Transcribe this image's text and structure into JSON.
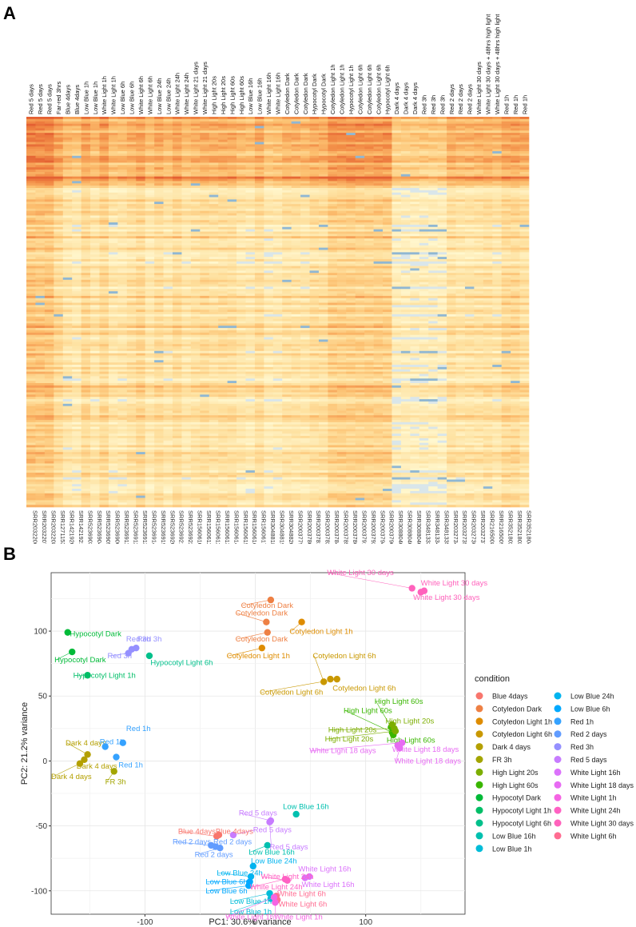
{
  "panels": {
    "a": "A",
    "b": "B"
  },
  "heatmap": {
    "columns": [
      {
        "condition": "Red 5 days",
        "sra": "SRR2032206"
      },
      {
        "condition": "Red 5 days",
        "sra": "SRR2032207"
      },
      {
        "condition": "Red 5 days",
        "sra": "SRR2032208"
      },
      {
        "condition": "Far-red 3hrs",
        "sra": "SRR1271153"
      },
      {
        "condition": "Blue 4days",
        "sra": "SRR1421920"
      },
      {
        "condition": "Blue 4days",
        "sra": "SRR1421921"
      },
      {
        "condition": "Low Blue 1h",
        "sra": "SRR5236903"
      },
      {
        "condition": "Low Blue 1h",
        "sra": "SRR5236904"
      },
      {
        "condition": "White Light 1h",
        "sra": "SRR5236905"
      },
      {
        "condition": "White Light 1h",
        "sra": "SRR5236906"
      },
      {
        "condition": "Low Blue 6h",
        "sra": "SRR5236911"
      },
      {
        "condition": "Low Blue 6h",
        "sra": "SRR5236912"
      },
      {
        "condition": "White Light 6h",
        "sra": "SRR5236913"
      },
      {
        "condition": "White Light 6h",
        "sra": "SRR5236914"
      },
      {
        "condition": "Low Blue 24h",
        "sra": "SRR5236919"
      },
      {
        "condition": "Low Blue 24h",
        "sra": "SRR5236920"
      },
      {
        "condition": "White Light 24h",
        "sra": "SRR5236921"
      },
      {
        "condition": "White Light 24h",
        "sra": "SRR5236922"
      },
      {
        "condition": "White Light 21 days",
        "sra": "SRR1560610"
      },
      {
        "condition": "White Light 21 days",
        "sra": "SRR1560611"
      },
      {
        "condition": "High Light 20s",
        "sra": "SRR1560612"
      },
      {
        "condition": "High Light 20s",
        "sra": "SRR1560613"
      },
      {
        "condition": "High Light 60s",
        "sra": "SRR1560614"
      },
      {
        "condition": "High Light 60s",
        "sra": "SRR1560615"
      },
      {
        "condition": "Low Blue 16h",
        "sra": "SRR1560616"
      },
      {
        "condition": "Low Blue 16h",
        "sra": "SRR1560617"
      },
      {
        "condition": "White Light 16h",
        "sra": "SRR3048818"
      },
      {
        "condition": "White Light 16h",
        "sra": "SRR3048819"
      },
      {
        "condition": "Cotyledon Dark",
        "sra": "SRR3048820"
      },
      {
        "condition": "Cotyledon Dark",
        "sra": "SRR2003779"
      },
      {
        "condition": "Cotyledon Dark",
        "sra": "SRR2003780"
      },
      {
        "condition": "Hypocotyl Dark",
        "sra": "SRR2003781"
      },
      {
        "condition": "Hypocotyl Dark",
        "sra": "SRR2003782"
      },
      {
        "condition": "Cotyledon Light 1h",
        "sra": "SRR2003784"
      },
      {
        "condition": "Cotyledon Light 1h",
        "sra": "SRR2003785"
      },
      {
        "condition": "Hypocotyl Light 1h",
        "sra": "SRR2003786"
      },
      {
        "condition": "Cotyledon Light 6h",
        "sra": "SRR2003791"
      },
      {
        "condition": "Cotyledon Light 6h",
        "sra": "SRR2003792"
      },
      {
        "condition": "Cotyledon Light 6h",
        "sra": "SRR2003794"
      },
      {
        "condition": "Hypocotyl Light 6h",
        "sra": "SRR2003796"
      },
      {
        "condition": "Dark 4 days",
        "sra": "SRR3088040_1"
      },
      {
        "condition": "Dark 4 days",
        "sra": "SRR3088040_2"
      },
      {
        "condition": "Dark 4 days",
        "sra": "SRR3088040_3"
      },
      {
        "condition": "Red 3h",
        "sra": "SRR3481333"
      },
      {
        "condition": "Red 3h",
        "sra": "SRR3481334"
      },
      {
        "condition": "Red 3h",
        "sra": "SRR3481335"
      },
      {
        "condition": "Red 2 days",
        "sra": "SRR2032734"
      },
      {
        "condition": "Red 2 days",
        "sra": "SRR2032735"
      },
      {
        "condition": "Red 2 days",
        "sra": "SRR2032736"
      },
      {
        "condition": "White Light 30 days",
        "sra": "SRR2032737"
      },
      {
        "condition": "White Light 30 days + 48hrs high light",
        "sra": "SRR2165008"
      },
      {
        "condition": "White Light 30 days + 48hrs high light",
        "sra": "SRR2165009"
      },
      {
        "condition": "Red 1h",
        "sra": "SRR3521802"
      },
      {
        "condition": "Red 1h",
        "sra": "SRR3521803"
      },
      {
        "condition": "Red 1h",
        "sra": "SRR3521804"
      }
    ]
  },
  "chart_data": {
    "type": "scatter",
    "xlabel": "PC1: 30.6% variance",
    "ylabel": "PC2: 21.2% variance",
    "xlim": [
      -185,
      190
    ],
    "ylim": [
      -118,
      145
    ],
    "xticks": [
      -100,
      0,
      100
    ],
    "yticks": [
      -100,
      -50,
      0,
      50,
      100
    ],
    "legend_title": "condition",
    "legend": [
      {
        "name": "Blue 4days",
        "color": "#F8766D"
      },
      {
        "name": "Cotyledon Dark",
        "color": "#EE8044"
      },
      {
        "name": "Cotyledon Light 1h",
        "color": "#DE8C00"
      },
      {
        "name": "Cotyledon Light 6h",
        "color": "#C99800"
      },
      {
        "name": "Dark 4 days",
        "color": "#B4A000"
      },
      {
        "name": "FR 3h",
        "color": "#A3A500"
      },
      {
        "name": "High Light 20s",
        "color": "#7CAE00"
      },
      {
        "name": "High Light 60s",
        "color": "#39B600"
      },
      {
        "name": "Hypocotyl Dark",
        "color": "#00BA38"
      },
      {
        "name": "Hypocotyl Light 1h",
        "color": "#00BE67"
      },
      {
        "name": "Hypocotyl Light 6h",
        "color": "#00C08B"
      },
      {
        "name": "Low Blue 16h",
        "color": "#00C0AF"
      },
      {
        "name": "Low Blue 1h",
        "color": "#00BCD8"
      },
      {
        "name": "Low Blue 24h",
        "color": "#00B4EF"
      },
      {
        "name": "Low Blue 6h",
        "color": "#00A9FF"
      },
      {
        "name": "Red 1h",
        "color": "#35A2FF"
      },
      {
        "name": "Red 2 days",
        "color": "#619CFF"
      },
      {
        "name": "Red 3h",
        "color": "#9590FF"
      },
      {
        "name": "Red 5 days",
        "color": "#C77CFF"
      },
      {
        "name": "White Light 16h",
        "color": "#DB72FB"
      },
      {
        "name": "White Light 18 days",
        "color": "#E76BF3"
      },
      {
        "name": "White Light 1h",
        "color": "#F564E3"
      },
      {
        "name": "White Light 24h",
        "color": "#FF61C3"
      },
      {
        "name": "White Light 30 days",
        "color": "#FF62BC"
      },
      {
        "name": "White Light 6h",
        "color": "#FF6C91"
      }
    ],
    "points": [
      {
        "x": -170,
        "y": 99,
        "label": "Hypocotyl Dark",
        "c": "Hypocotyl Dark",
        "lx": -168,
        "ly": 96,
        "anchor": "start"
      },
      {
        "x": -166,
        "y": 84,
        "label": "Hypocotyl Dark",
        "c": "Hypocotyl Dark",
        "lx": -182,
        "ly": 76,
        "anchor": "start"
      },
      {
        "x": -112,
        "y": 86,
        "label": "Red 3h",
        "c": "Red 3h",
        "lx": -117,
        "ly": 92,
        "anchor": "start"
      },
      {
        "x": -108,
        "y": 87,
        "label": "Red 3h",
        "c": "Red 3h",
        "lx": -107,
        "ly": 92,
        "anchor": "start"
      },
      {
        "x": -115,
        "y": 83,
        "label": "Red 3h",
        "c": "Red 3h",
        "lx": -134,
        "ly": 79,
        "anchor": "start"
      },
      {
        "x": -96,
        "y": 81,
        "label": "Hypocotyl Light 6h",
        "c": "Hypocotyl Light 6h",
        "lx": -95,
        "ly": 74,
        "anchor": "start"
      },
      {
        "x": -152,
        "y": 66,
        "label": "Hypocotyl Light 1h",
        "c": "Hypocotyl Light 1h",
        "lx": -165,
        "ly": 64,
        "anchor": "start"
      },
      {
        "x": 14,
        "y": 124,
        "label": "Cotyledon Dark",
        "c": "Cotyledon Dark",
        "lx": -13,
        "ly": 118,
        "anchor": "start"
      },
      {
        "x": 10,
        "y": 107,
        "label": "Cotyledon Dark",
        "c": "Cotyledon Dark",
        "lx": -18,
        "ly": 112,
        "anchor": "start"
      },
      {
        "x": 11,
        "y": 99,
        "label": "Cotyledon Dark",
        "c": "Cotyledon Dark",
        "lx": -18,
        "ly": 92,
        "anchor": "start"
      },
      {
        "x": 42,
        "y": 107,
        "label": "Cotyledon Light 1h",
        "c": "Cotyledon Light 1h",
        "lx": 31,
        "ly": 98,
        "anchor": "start"
      },
      {
        "x": 6,
        "y": 87,
        "label": "Cotyledon Light 1h",
        "c": "Cotyledon Light 1h",
        "lx": -26,
        "ly": 79,
        "anchor": "start"
      },
      {
        "x": 62,
        "y": 61,
        "label": "Cotyledon Light 6h",
        "c": "Cotyledon Light 6h",
        "lx": 52,
        "ly": 79,
        "anchor": "start"
      },
      {
        "x": 68,
        "y": 63,
        "label": "Cotyledon Light 6h",
        "c": "Cotyledon Light 6h",
        "lx": 70,
        "ly": 54,
        "anchor": "start"
      },
      {
        "x": 74,
        "y": 63,
        "label": "Cotyledon Light 6h",
        "c": "Cotyledon Light 6h",
        "lx": 4,
        "ly": 51,
        "anchor": "start"
      },
      {
        "x": 142,
        "y": 133,
        "label": "White Light 30 days",
        "c": "White Light 30 days",
        "lx": 65,
        "ly": 143,
        "anchor": "start"
      },
      {
        "x": 150,
        "y": 130,
        "label": "White Light 30 days",
        "c": "White Light 30 days",
        "lx": 150,
        "ly": 135,
        "anchor": "start"
      },
      {
        "x": 153,
        "y": 131,
        "label": "White Light 30 days",
        "c": "White Light 30 days",
        "lx": 143,
        "ly": 124,
        "anchor": "start"
      },
      {
        "x": 123,
        "y": 26,
        "label": "High Light 60s",
        "c": "High Light 60s",
        "lx": 108,
        "ly": 44,
        "anchor": "start"
      },
      {
        "x": 124,
        "y": 22,
        "label": "High Light 60s",
        "c": "High Light 60s",
        "lx": 80,
        "ly": 37,
        "anchor": "start"
      },
      {
        "x": 125,
        "y": 20,
        "label": "High Light 60s",
        "c": "High Light 60s",
        "lx": 119,
        "ly": 14,
        "anchor": "start"
      },
      {
        "x": 124,
        "y": 28,
        "label": "High Light 20s",
        "c": "High Light 20s",
        "lx": 118,
        "ly": 29,
        "anchor": "start"
      },
      {
        "x": 126,
        "y": 25,
        "label": "High Light 20s",
        "c": "High Light 20s",
        "lx": 66,
        "ly": 22,
        "anchor": "start"
      },
      {
        "x": 127,
        "y": 23,
        "label": "High Light 20s",
        "c": "High Light 20s",
        "lx": 63,
        "ly": 15,
        "anchor": "start"
      },
      {
        "x": 133,
        "y": 14,
        "label": "White Light 18 days",
        "c": "White Light 18 days",
        "lx": 49,
        "ly": 6,
        "anchor": "start"
      },
      {
        "x": 129,
        "y": 12,
        "label": "White Light 18 days",
        "c": "White Light 18 days",
        "lx": 124,
        "ly": 7,
        "anchor": "start"
      },
      {
        "x": 131,
        "y": 10,
        "label": "White Light 18 days",
        "c": "White Light 18 days",
        "lx": 126,
        "ly": -2,
        "anchor": "start"
      },
      {
        "x": -152,
        "y": 5,
        "label": "Dark 4 days",
        "c": "Dark 4 days",
        "lx": -172,
        "ly": 12,
        "anchor": "start"
      },
      {
        "x": -155,
        "y": 1,
        "label": "Dark 4 days",
        "c": "Dark 4 days",
        "lx": -162,
        "ly": -6,
        "anchor": "start"
      },
      {
        "x": -159,
        "y": -2,
        "label": "Dark 4 days",
        "c": "Dark 4 days",
        "lx": -185,
        "ly": -14,
        "anchor": "start"
      },
      {
        "x": -136,
        "y": 11,
        "label": "Red 1h",
        "c": "Red 1h",
        "lx": -141,
        "ly": 13,
        "anchor": "start"
      },
      {
        "x": -120,
        "y": 14,
        "label": "Red 1h",
        "c": "Red 1h",
        "lx": -117,
        "ly": 23,
        "anchor": "start"
      },
      {
        "x": -126,
        "y": 3,
        "label": "Red 1h",
        "c": "Red 1h",
        "lx": -124,
        "ly": -5,
        "anchor": "start"
      },
      {
        "x": -128,
        "y": -8,
        "label": "FR 3h",
        "c": "FR 3h",
        "lx": -136,
        "ly": -18,
        "anchor": "start"
      },
      {
        "x": 37,
        "y": -41,
        "label": "Low Blue 16h",
        "c": "Low Blue 16h",
        "lx": 25,
        "ly": -37,
        "anchor": "start"
      },
      {
        "x": 11,
        "y": -65,
        "label": "Low Blue 16h",
        "c": "Low Blue 16h",
        "lx": -6,
        "ly": -72,
        "anchor": "start"
      },
      {
        "x": -2,
        "y": -81,
        "label": "Low Blue 24h",
        "c": "Low Blue 24h",
        "lx": -4,
        "ly": -79,
        "anchor": "start"
      },
      {
        "x": -4,
        "y": -89,
        "label": "Low Blue 24h",
        "c": "Low Blue 24h",
        "lx": -35,
        "ly": -88,
        "anchor": "start"
      },
      {
        "x": -5,
        "y": -93,
        "label": "Low Blue 6h",
        "c": "Low Blue 6h",
        "lx": -45,
        "ly": -95,
        "anchor": "start"
      },
      {
        "x": -6,
        "y": -96,
        "label": "Low Blue 6h",
        "c": "Low Blue 6h",
        "lx": -45,
        "ly": -102,
        "anchor": "start"
      },
      {
        "x": 13,
        "y": -102,
        "label": "Low Blue 1h",
        "c": "Low Blue 1h",
        "lx": -23,
        "ly": -110,
        "anchor": "start"
      },
      {
        "x": 14,
        "y": -106,
        "label": "Low Blue 1h",
        "c": "Low Blue 1h",
        "lx": -23,
        "ly": -118,
        "anchor": "start"
      },
      {
        "x": 14,
        "y": -46,
        "label": "Red 5 days",
        "c": "Red 5 days",
        "lx": -15,
        "ly": -42,
        "anchor": "start"
      },
      {
        "x": -20,
        "y": -57,
        "label": "Red 5 days",
        "c": "Red 5 days",
        "lx": -2,
        "ly": -55,
        "anchor": "start"
      },
      {
        "x": 13,
        "y": -47,
        "label": "Red 5 days",
        "c": "Red 5 days",
        "lx": 13,
        "ly": -68,
        "anchor": "start"
      },
      {
        "x": -35,
        "y": -58,
        "label": "Blue 4days",
        "c": "Blue 4days",
        "lx": -70,
        "ly": -56,
        "anchor": "start"
      },
      {
        "x": -33,
        "y": -57,
        "label": "Blue 4days",
        "c": "Blue 4days",
        "lx": -36,
        "ly": -56,
        "anchor": "start"
      },
      {
        "x": -40,
        "y": -65,
        "label": "Red 2 days",
        "c": "Red 2 days",
        "lx": -75,
        "ly": -64,
        "anchor": "start"
      },
      {
        "x": -36,
        "y": -66,
        "label": "Red 2 days",
        "c": "Red 2 days",
        "lx": -38,
        "ly": -64,
        "anchor": "start"
      },
      {
        "x": -32,
        "y": -67,
        "label": "Red 2 days",
        "c": "Red 2 days",
        "lx": -55,
        "ly": -74,
        "anchor": "start"
      },
      {
        "x": 49,
        "y": -89,
        "label": "White Light 16h",
        "c": "White Light 16h",
        "lx": 39,
        "ly": -85,
        "anchor": "start"
      },
      {
        "x": 45,
        "y": -90,
        "label": "White Light 16h",
        "c": "White Light 16h",
        "lx": 42,
        "ly": -97,
        "anchor": "start"
      },
      {
        "x": 29,
        "y": -92,
        "label": "White Light 24h",
        "c": "White Light 24h",
        "lx": 5,
        "ly": -91,
        "anchor": "start"
      },
      {
        "x": 27,
        "y": -91,
        "label": "White Light 24h",
        "c": "White Light 24h",
        "lx": -5,
        "ly": -99,
        "anchor": "start"
      },
      {
        "x": 19,
        "y": -104,
        "label": "White Light 6h",
        "c": "White Light 6h",
        "lx": 20,
        "ly": -104,
        "anchor": "start"
      },
      {
        "x": 20,
        "y": -107,
        "label": "White Light 6h",
        "c": "White Light 6h",
        "lx": 21,
        "ly": -112,
        "anchor": "start"
      },
      {
        "x": 17,
        "y": -105,
        "label": "White Light 1h",
        "c": "White Light 1h",
        "lx": -27,
        "ly": -122,
        "anchor": "start"
      },
      {
        "x": 18,
        "y": -109,
        "label": "White Light 1h",
        "c": "White Light 1h",
        "lx": 17,
        "ly": -122,
        "anchor": "start"
      }
    ]
  }
}
